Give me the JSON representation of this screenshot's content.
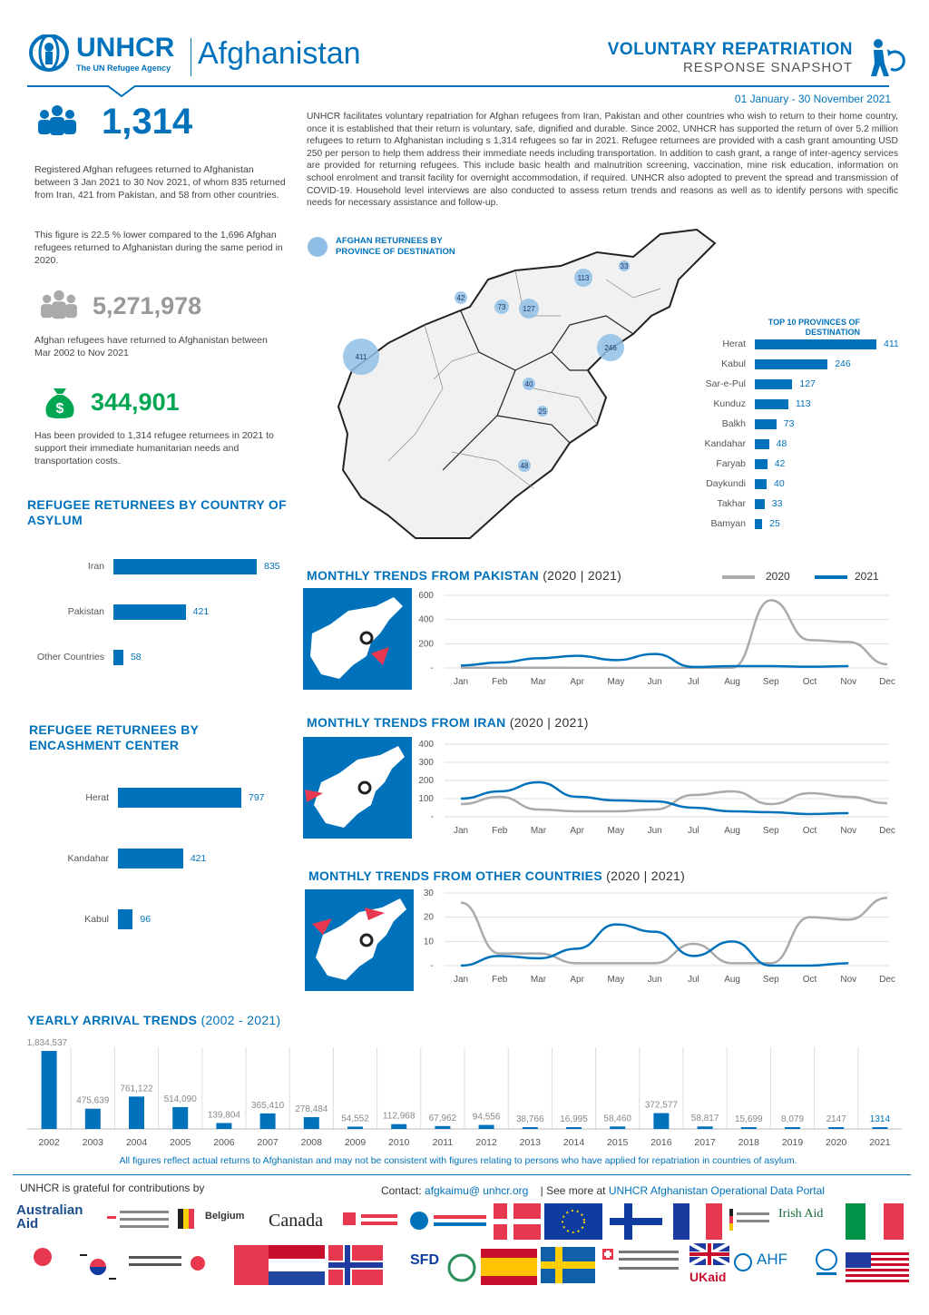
{
  "header": {
    "org_logo_text": "UNHCR",
    "org_logo_subtitle": "The UN Refugee Agency",
    "country": "Afghanistan",
    "title": "VOLUNTARY REPATRIATION",
    "subtitle": "RESPONSE SNAPSHOT",
    "date_range": "01 January - 30 November 2021"
  },
  "kpis": {
    "returnees": {
      "value": "1,314",
      "text1": "Registered Afghan refugees returned to Afghanistan between 3 Jan 2021 to 30 Nov 2021, of whom 835 returned from Iran, 421 from Pakistan, and 58 from other countries.",
      "text2": "This figure is 22.5 % lower compared to the 1,696 Afghan refugees returned to Afghanistan during the same period in 2020."
    },
    "total_returnees": {
      "value": "5,271,978",
      "text": "Afghan refugees have returned to Afghanistan between Mar 2002 to Nov 2021"
    },
    "cash": {
      "value": "344,901",
      "text": "Has been provided to 1,314 refugee returnees in 2021 to support their immediate humanitarian needs and transportation costs."
    }
  },
  "intro": "UNHCR facilitates voluntary repatriation for Afghan refugees from Iran, Pakistan and other countries who wish to return to their home country, once it is established that their return is voluntary, safe, dignified and durable. Since 2002, UNHCR has supported the return of over 5.2 million refugees to return to Afghanistan including s 1,314 refugees so far in 2021. Refugee returnees are provided with a cash grant amounting USD 250 per person to help them address their immediate needs including transportation. In addition to cash grant, a range of inter-agency services are provided for returning refugees. This include basic health and malnutrition screening, vaccination, mine risk education, information on school enrolment and transit facility for overnight accommodation, if required. UNHCR also adopted to prevent the spread and transmission of COVID-19. Household level interviews are also conducted to assess return trends and reasons as well as to identify persons with specific needs for necessary assistance and follow-up.",
  "map": {
    "legend": "AFGHAN RETURNEES BY PROVINCE OF DESTINATION",
    "bubbles": [
      {
        "label": "411",
        "r": 20
      },
      {
        "label": "246",
        "r": 15
      },
      {
        "label": "127",
        "r": 11
      },
      {
        "label": "113",
        "r": 10
      },
      {
        "label": "73",
        "r": 8
      },
      {
        "label": "48",
        "r": 7
      },
      {
        "label": "42",
        "r": 7
      },
      {
        "label": "40",
        "r": 7
      },
      {
        "label": "33",
        "r": 6
      },
      {
        "label": "25",
        "r": 6
      }
    ]
  },
  "top10": {
    "title": "TOP 10 PROVINCES OF DESTINATION",
    "items": [
      {
        "name": "Herat",
        "value": 411
      },
      {
        "name": "Kabul",
        "value": 246
      },
      {
        "name": "Sar-e-Pul",
        "value": 127
      },
      {
        "name": "Kunduz",
        "value": 113
      },
      {
        "name": "Balkh",
        "value": 73
      },
      {
        "name": "Kandahar",
        "value": 48
      },
      {
        "name": "Faryab",
        "value": 42
      },
      {
        "name": "Daykundi",
        "value": 40
      },
      {
        "name": "Takhar",
        "value": 33
      },
      {
        "name": "Bamyan",
        "value": 25
      }
    ]
  },
  "by_country": {
    "title": "REFUGEE RETURNEES BY COUNTRY OF ASYLUM",
    "items": [
      {
        "name": "Iran",
        "value": 835
      },
      {
        "name": "Pakistan",
        "value": 421
      },
      {
        "name": "Other Countries",
        "value": 58
      }
    ]
  },
  "by_encashment": {
    "title": "REFUGEE RETURNEES BY ENCASHMENT CENTER",
    "items": [
      {
        "name": "Herat",
        "value": 797
      },
      {
        "name": "Kandahar",
        "value": 421
      },
      {
        "name": "Kabul",
        "value": 96
      }
    ]
  },
  "chart_data": [
    {
      "type": "line",
      "title": "MONTHLY TRENDS FROM PAKISTAN",
      "title_years": "(2020 | 2021)",
      "categories": [
        "Jan",
        "Feb",
        "Mar",
        "Apr",
        "May",
        "Jun",
        "Jul",
        "Aug",
        "Sep",
        "Oct",
        "Nov",
        "Dec"
      ],
      "series": [
        {
          "name": "2020",
          "values": [
            2,
            2,
            2,
            1,
            1,
            1,
            1,
            2,
            560,
            230,
            215,
            30
          ]
        },
        {
          "name": "2021",
          "values": [
            20,
            45,
            80,
            100,
            65,
            115,
            8,
            15,
            15,
            10,
            15,
            null
          ]
        }
      ],
      "yticks": [
        "600",
        "400",
        "200",
        "-"
      ],
      "ylim": [
        0,
        600
      ]
    },
    {
      "type": "line",
      "title": "MONTHLY TRENDS FROM IRAN",
      "title_years": "(2020 | 2021)",
      "categories": [
        "Jan",
        "Feb",
        "Mar",
        "Apr",
        "May",
        "Jun",
        "Jul",
        "Aug",
        "Sep",
        "Oct",
        "Nov",
        "Dec"
      ],
      "series": [
        {
          "name": "2020",
          "values": [
            70,
            110,
            40,
            30,
            30,
            40,
            120,
            140,
            70,
            130,
            110,
            75
          ]
        },
        {
          "name": "2021",
          "values": [
            100,
            140,
            190,
            110,
            90,
            85,
            50,
            30,
            25,
            15,
            20,
            null
          ]
        }
      ],
      "yticks": [
        "400",
        "300",
        "200",
        "100",
        "-"
      ],
      "ylim": [
        0,
        400
      ]
    },
    {
      "type": "line",
      "title": "MONTHLY TRENDS FROM OTHER COUNTRIES",
      "title_years": "(2020 | 2021)",
      "categories": [
        "Jan",
        "Feb",
        "Mar",
        "Apr",
        "May",
        "Jun",
        "Jul",
        "Aug",
        "Sep",
        "Oct",
        "Nov",
        "Dec"
      ],
      "series": [
        {
          "name": "2020",
          "values": [
            26,
            5,
            5,
            1,
            1,
            1,
            9,
            1,
            1,
            20,
            19,
            28
          ]
        },
        {
          "name": "2021",
          "values": [
            0,
            4,
            3,
            7,
            17,
            14,
            4,
            10,
            0,
            0,
            1,
            null
          ]
        }
      ],
      "yticks": [
        "30",
        "20",
        "10",
        "-"
      ],
      "ylim": [
        0,
        30
      ]
    },
    {
      "type": "bar",
      "title": "YEARLY ARRIVAL TRENDS",
      "title_years": "(2002 - 2021)",
      "categories": [
        "2002",
        "2003",
        "2004",
        "2005",
        "2006",
        "2007",
        "2008",
        "2009",
        "2010",
        "2011",
        "2012",
        "2013",
        "2014",
        "2015",
        "2016",
        "2017",
        "2018",
        "2019",
        "2020",
        "2021"
      ],
      "values": [
        1834537,
        475639,
        761122,
        514090,
        139804,
        365410,
        278484,
        54552,
        112968,
        67962,
        94556,
        38766,
        16995,
        58460,
        372577,
        58817,
        15699,
        8079,
        2147,
        1314
      ],
      "labels": [
        "1,834,537",
        "475,639",
        "761,122",
        "514,090",
        "139,804",
        "365,410",
        "278,484",
        "54,552",
        "112,968",
        "67,962",
        "94,556",
        "38,766",
        "16,995",
        "58,460",
        "372,577",
        "58,817",
        "15,699",
        "8,079",
        "2147",
        "1314"
      ]
    }
  ],
  "legend": {
    "s2020": "2020",
    "s2021": "2021"
  },
  "footnote": "All figures reflect actual returns to Afghanistan and may not be consistent with figures relating to persons who have applied for repatriation in countries of asylum.",
  "footer": {
    "grateful": "UNHCR is grateful for contributions by",
    "contact_label": "Contact:",
    "contact_email": "afgkaimu@ unhcr.org",
    "see_more_label": "| See more at",
    "portal_link": "UNHCR Afghanistan Operational Data Portal",
    "donors_row1": [
      "Australian Aid",
      "Belgium",
      "Canada",
      "Irish Aid"
    ],
    "donors_row2": [
      "SFD",
      "UKaid",
      "AHF"
    ]
  },
  "colors": {
    "brand": "#0072bc",
    "gray": "#aaaaaa",
    "red": "#e8384f"
  }
}
